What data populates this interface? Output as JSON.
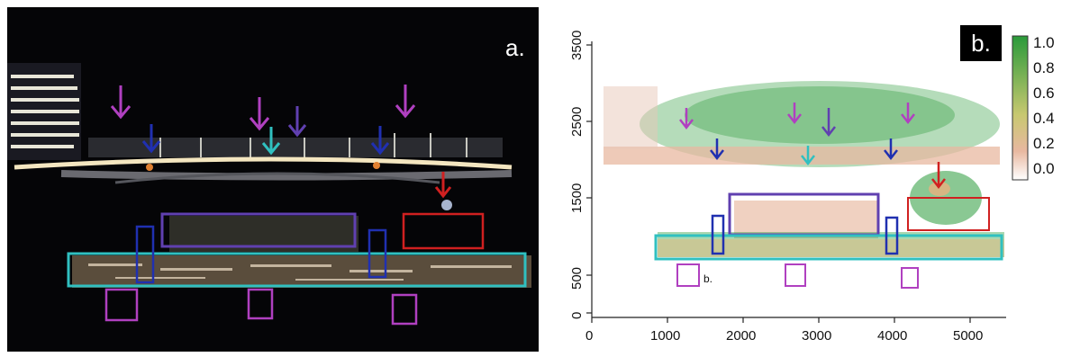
{
  "panel_a": {
    "label": "a."
  },
  "panel_b": {
    "label": "b.",
    "inset_label": "b.",
    "x_ticks": [
      "0",
      "1000",
      "2000",
      "3000",
      "4000",
      "5000"
    ],
    "y_ticks": [
      "0",
      "500",
      "1500",
      "2500",
      "3500"
    ],
    "colorbar_ticks": [
      "1.0",
      "0.8",
      "0.6",
      "0.4",
      "0.2",
      "0.0"
    ]
  },
  "colors": {
    "magenta": "#b040c0",
    "blue": "#2030b0",
    "cyan": "#30c0c0",
    "red": "#d02020",
    "purple": "#6040b0",
    "green": "#2a9a3a",
    "salmon": "#e8b8a0"
  }
}
